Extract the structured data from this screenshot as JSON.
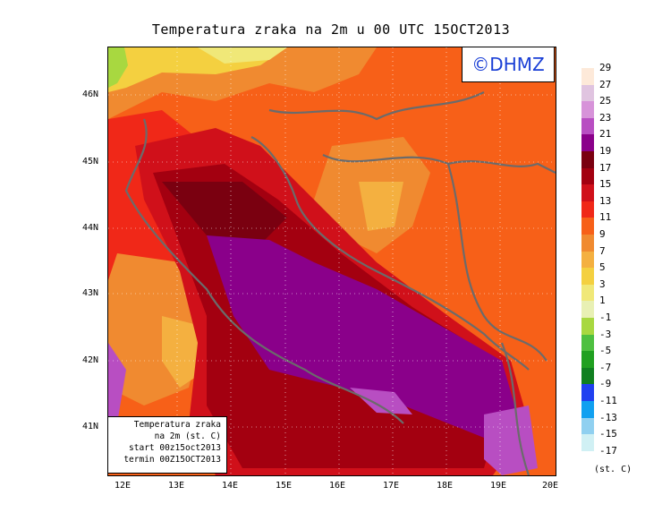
{
  "title": "Temperatura zraka na 2m u 00 UTC 15OCT2013",
  "logo": "©DHMZ",
  "info": {
    "line1": "Temperatura zraka",
    "line2": "na 2m (st. C)",
    "line3": "start 00z15oct2013",
    "line4": "termin 00Z15OCT2013"
  },
  "lat_labels": [
    "46N",
    "45N",
    "44N",
    "43N",
    "42N",
    "41N"
  ],
  "lon_labels": [
    "12E",
    "13E",
    "14E",
    "15E",
    "16E",
    "17E",
    "18E",
    "19E",
    "20E"
  ],
  "legend": {
    "unit": "(st. C)",
    "levels": [
      "29",
      "27",
      "25",
      "23",
      "21",
      "19",
      "17",
      "15",
      "13",
      "11",
      "9",
      "7",
      "5",
      "3",
      "1",
      "-1",
      "-3",
      "-5",
      "-7",
      "-9",
      "-11",
      "-13",
      "-15",
      "-17"
    ],
    "colors": [
      "#fde9d9",
      "#e0c4e0",
      "#d793d9",
      "#b84ec2",
      "#8a008a",
      "#7a0010",
      "#a30010",
      "#d0101a",
      "#f02818",
      "#f76018",
      "#f08a30",
      "#f4b040",
      "#f4d040",
      "#f0e878",
      "#e8f0b4",
      "#a8d840",
      "#4ec040",
      "#20a020",
      "#108020",
      "#2040f0",
      "#10a0f0",
      "#90d0f0",
      "#d0f0f4",
      "#ffffff"
    ]
  }
}
